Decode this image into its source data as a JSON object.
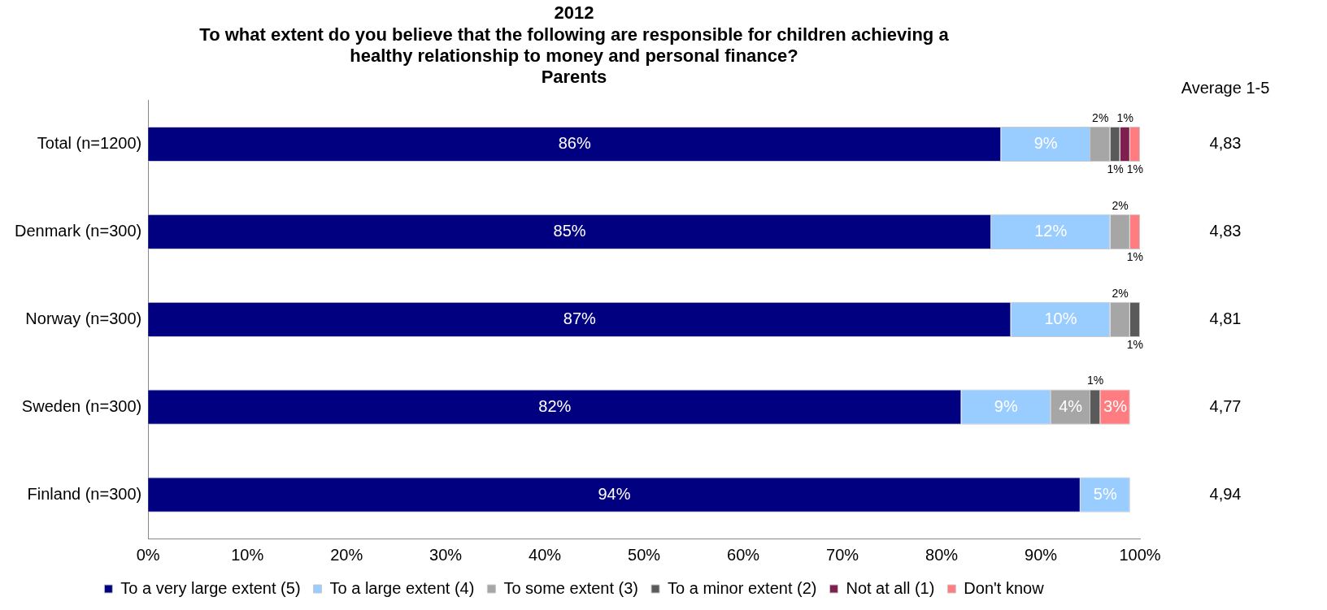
{
  "chart_data": {
    "type": "bar",
    "orientation": "horizontal",
    "stacked": true,
    "title": "2012\nTo what extent do you believe that the following are responsible for children achieving a\nhealthy relationship to money and personal finance?",
    "subtitle": "Parents",
    "categories": [
      "Total (n=1200)",
      "Denmark (n=300)",
      "Norway (n=300)",
      "Sweden (n=300)",
      "Finland (n=300)"
    ],
    "series": [
      {
        "name": "To a very large extent (5)",
        "color": "#000080",
        "values": [
          86,
          85,
          87,
          82,
          94
        ],
        "value_labels": [
          "86%",
          "85%",
          "87%",
          "82%",
          "94%"
        ]
      },
      {
        "name": "To a large extent (4)",
        "color": "#99ccff",
        "values": [
          9,
          12,
          10,
          9,
          5
        ],
        "value_labels": [
          "9%",
          "12%",
          "10%",
          "9%",
          "5%"
        ]
      },
      {
        "name": "To some extent (3)",
        "color": "#a6a6a6",
        "values": [
          2,
          2,
          2,
          4,
          null
        ],
        "value_labels": [
          "2%",
          "2%",
          "2%",
          "4%",
          null
        ]
      },
      {
        "name": "To a minor extent (2)",
        "color": "#5a5a5a",
        "values": [
          1,
          null,
          1,
          1,
          null
        ],
        "value_labels": [
          "1%",
          null,
          "1%",
          "1%",
          null
        ]
      },
      {
        "name": "Not at all (1)",
        "color": "#7f1f4f",
        "values": [
          1,
          null,
          null,
          null,
          null
        ],
        "value_labels": [
          "1%",
          null,
          null,
          null,
          null
        ]
      },
      {
        "name": "Don't know",
        "color": "#ff7c80",
        "values": [
          1,
          1,
          null,
          3,
          null
        ],
        "value_labels": [
          "1%",
          "1%",
          null,
          "3%",
          null
        ]
      }
    ],
    "xlim": [
      0,
      100
    ],
    "xticks": [
      {
        "value": 0,
        "label": "0%"
      },
      {
        "value": 10,
        "label": "10%"
      },
      {
        "value": 20,
        "label": "20%"
      },
      {
        "value": 30,
        "label": "30%"
      },
      {
        "value": 40,
        "label": "40%"
      },
      {
        "value": 50,
        "label": "50%"
      },
      {
        "value": 60,
        "label": "60%"
      },
      {
        "value": 70,
        "label": "70%"
      },
      {
        "value": 80,
        "label": "80%"
      },
      {
        "value": 90,
        "label": "90%"
      },
      {
        "value": 100,
        "label": "100%"
      }
    ],
    "grid": false,
    "legend": "bottom",
    "annotations": [
      "Average 1-5",
      "4,83",
      "4,83",
      "4,81",
      "4,77",
      "4,94"
    ]
  }
}
